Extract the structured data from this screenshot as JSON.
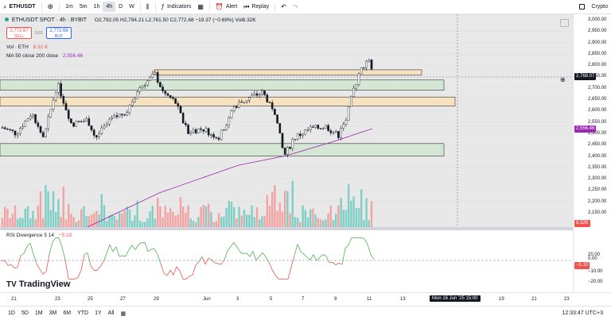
{
  "toolbar": {
    "symbol": "ETHUSDT",
    "intervals": [
      "1m",
      "5m",
      "1h",
      "4h",
      "D",
      "W"
    ],
    "active_interval": "4h",
    "indicators_label": "Indicators",
    "alert_label": "Alert",
    "replay_label": "Replay",
    "crypto_label": "Crypto"
  },
  "legend": {
    "title": "ETHUSDT SPOT · 4h · BYBIT",
    "ohlc": "O2,792.05  H2,794.21  L2,761.50  C2,772.68  −19.37 (−0.69%)  Vol8.32K",
    "sell_price": "2,772.67",
    "sell_label": "SELL",
    "spread": "0.01",
    "buy_price": "2,772.68",
    "buy_label": "BUY",
    "vol_label": "Vol · ETH",
    "vol_value": "8.32 K",
    "ma_label": "MA 50 close 200 close",
    "ma_value": "2,556.46"
  },
  "rsi": {
    "label": "RSI Divergence 5 14",
    "value": "−5.10"
  },
  "price_axis": {
    "ticks": [
      "3,000.00",
      "2,950.00",
      "2,900.00",
      "2,850.00",
      "2,800.00",
      "2,750.00",
      "2,700.00",
      "2,650.00",
      "2,600.00",
      "2,550.00",
      "2,500.00",
      "2,450.00",
      "2,400.00",
      "2,350.00",
      "2,300.00",
      "2,250.00",
      "2,200.00",
      "2,150.00"
    ],
    "current_price": "2,768.07",
    "ma_price": "2,556.46",
    "volume_tag": "8.32K",
    "rsi_ticks": [
      "20.00",
      "0.00",
      "−10.00",
      "−20.00"
    ],
    "rsi_current": "−5.10"
  },
  "time_axis": {
    "ticks": [
      "21",
      "23",
      "25",
      "27",
      "29",
      "Jun",
      "3",
      "5",
      "7",
      "9",
      "11",
      "13",
      "19",
      "21",
      "23"
    ],
    "crosshair_label": "Mon 16 Jun '25   15:00"
  },
  "bottom": {
    "ranges": [
      "1D",
      "5D",
      "1M",
      "3M",
      "6M",
      "YTD",
      "1Y",
      "All"
    ],
    "clock": "12:33:47 UTC+3"
  },
  "watermark": "TradingView",
  "colors": {
    "up": "#26a69a",
    "down": "#ef5350",
    "candle": "#131722",
    "ma": "#9c27b0",
    "zone_green": "#d4e6d4",
    "zone_orange": "#f6e2c0",
    "rsi": "#4caf50"
  }
}
